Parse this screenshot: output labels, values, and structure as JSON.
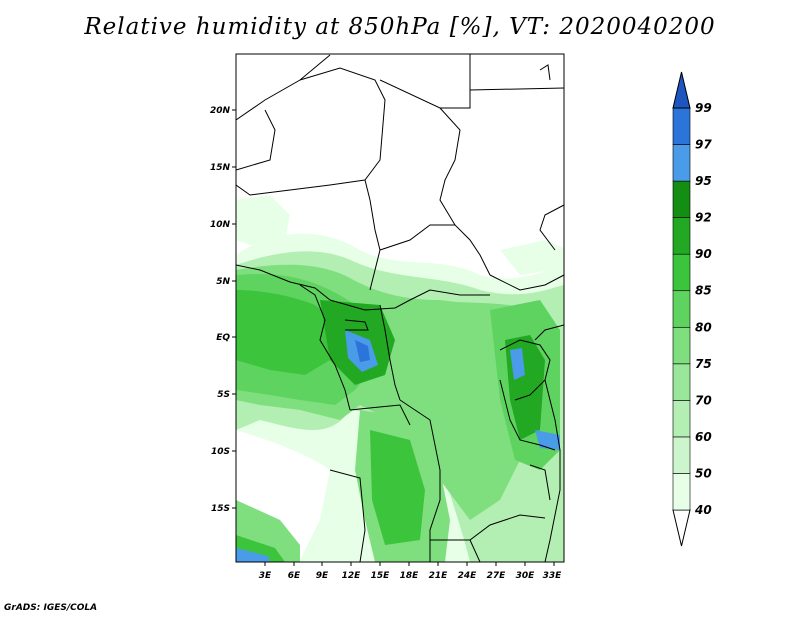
{
  "title": "Relative humidity at 850hPa [%], VT: 2020040200",
  "credit": "GrADS: IGES/COLA",
  "map": {
    "lon_range": [
      0,
      34
    ],
    "lat_range": [
      -19,
      25
    ],
    "lon_ticks": [
      "3E",
      "6E",
      "9E",
      "12E",
      "15E",
      "18E",
      "21E",
      "24E",
      "27E",
      "30E",
      "33E"
    ],
    "lat_ticks": [
      "20N",
      "15N",
      "10N",
      "5N",
      "EQ",
      "5S",
      "10S",
      "15S"
    ]
  },
  "colorbar": {
    "levels": [
      "40",
      "50",
      "60",
      "70",
      "75",
      "80",
      "85",
      "90",
      "92",
      "95",
      "97",
      "99"
    ],
    "colors": [
      "#ffffff",
      "#e6ffe6",
      "#cdf5cd",
      "#b3eeb3",
      "#9ae69a",
      "#7fdf7f",
      "#5fd35f",
      "#3dc43d",
      "#23a823",
      "#138e13",
      "#4a9be8",
      "#2b74d9",
      "#1e56c0"
    ]
  }
}
